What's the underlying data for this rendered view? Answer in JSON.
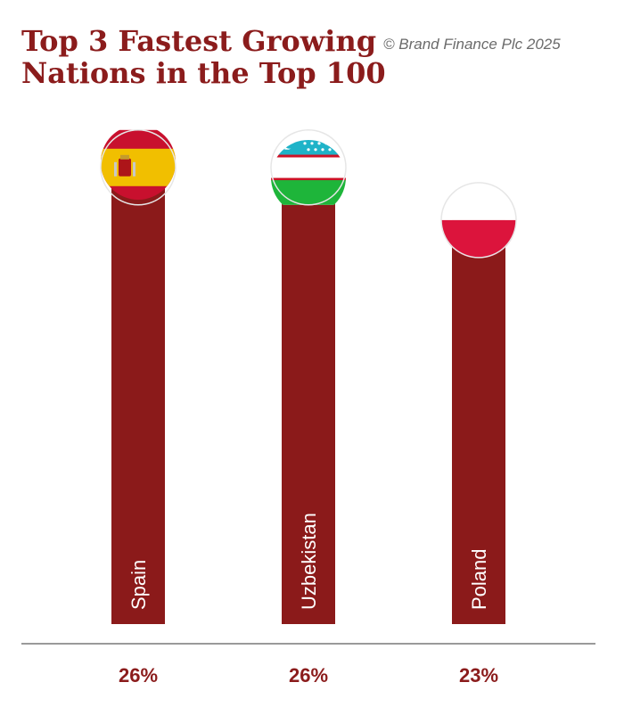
{
  "title_lines": [
    "Top 3 Fastest Growing",
    "Nations in the Top 100"
  ],
  "copyright": "© Brand Finance Plc 2025",
  "colors": {
    "bar": "#8b1a1a",
    "title": "#8b1c1c",
    "value_label": "#8b1c1c",
    "baseline": "#9a9a9a"
  },
  "chart_data": {
    "type": "bar",
    "categories": [
      "Spain",
      "Uzbekistan",
      "Poland"
    ],
    "values": [
      26,
      26,
      23
    ],
    "value_labels": [
      "26%",
      "26%",
      "23%"
    ],
    "flags": [
      "spain-flag",
      "uzbekistan-flag",
      "poland-flag"
    ],
    "grid": false,
    "legend": "none"
  }
}
